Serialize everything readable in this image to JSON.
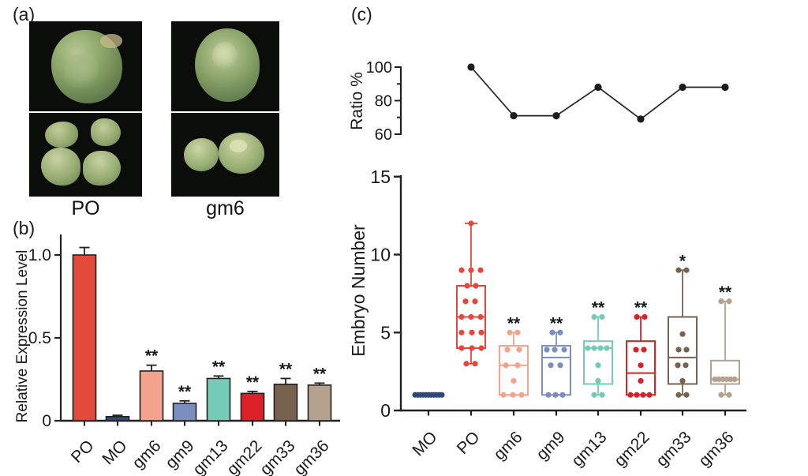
{
  "panel_a": {
    "label": "(a)",
    "description": "photographs of somatic embryos on black background",
    "columns": [
      {
        "label": "PO"
      },
      {
        "label": "gm6"
      }
    ]
  },
  "panel_b": {
    "label": "(b)"
  },
  "panel_c": {
    "label": "(c)"
  },
  "chart_data": [
    {
      "id": "expression_bar",
      "type": "bar",
      "title": "",
      "xlabel": "",
      "ylabel": "Relative Expression Level",
      "ylim": [
        0,
        1.1
      ],
      "yticks": [
        0,
        0.5,
        1.0
      ],
      "ytick_labels": [
        "0",
        "0.5",
        "1.0"
      ],
      "categories": [
        "PO",
        "MO",
        "gm6",
        "gm9",
        "gm13",
        "gm22",
        "gm33",
        "gm36"
      ],
      "values": [
        1.0,
        0.025,
        0.3,
        0.105,
        0.255,
        0.165,
        0.22,
        0.215
      ],
      "errors": [
        0.045,
        0.008,
        0.035,
        0.015,
        0.015,
        0.012,
        0.035,
        0.012
      ],
      "colors": [
        "#E24B3C",
        "#2E4879",
        "#F3A38E",
        "#7C8EC0",
        "#74CCB7",
        "#DB2027",
        "#77624F",
        "#B3A28D"
      ],
      "significance": [
        "",
        "",
        "**",
        "**",
        "**",
        "**",
        "**",
        "**"
      ],
      "grid": false
    },
    {
      "id": "ratio_line",
      "type": "line",
      "title": "",
      "ylabel": "Ratio %",
      "ylim": [
        60,
        100
      ],
      "yticks": [
        60,
        70,
        80,
        90,
        100
      ],
      "ytick_labels": [
        "60",
        "",
        "80",
        "",
        "100"
      ],
      "categories": [
        "PO",
        "gm6",
        "gm9",
        "gm13",
        "gm22",
        "gm33",
        "gm36"
      ],
      "values": [
        100,
        71,
        71,
        88,
        69,
        88,
        88
      ],
      "color": "#222222",
      "grid": false
    },
    {
      "id": "embryo_box",
      "type": "box",
      "title": "",
      "ylabel": "Embryo Number",
      "ylim": [
        0,
        15
      ],
      "yticks": [
        0,
        5,
        10,
        15
      ],
      "ytick_labels": [
        "0",
        "5",
        "10",
        "15"
      ],
      "categories": [
        "MO",
        "PO",
        "gm6",
        "gm9",
        "gm13",
        "gm22",
        "gm33",
        "gm36"
      ],
      "boxes": [
        {
          "name": "MO",
          "color": "#2E4879",
          "q1": null,
          "median": null,
          "q3": null,
          "whisker_low": null,
          "whisker_high": null,
          "sig": "",
          "sig_at": null,
          "points": [
            [
              1,
              -17
            ],
            [
              1,
              -13.6
            ],
            [
              1,
              -10.2
            ],
            [
              1,
              -6.8
            ],
            [
              1,
              -3.4
            ],
            [
              1,
              0
            ],
            [
              1,
              3.4
            ],
            [
              1,
              6.8
            ],
            [
              1,
              10.2
            ],
            [
              1,
              13.6
            ],
            [
              1,
              17
            ]
          ]
        },
        {
          "name": "PO",
          "color": "#E8463A",
          "q1": 4,
          "median": 6,
          "q3": 8,
          "whisker_low": 3,
          "whisker_high": 12,
          "sig": "",
          "sig_at": null,
          "points": [
            [
              12,
              0
            ],
            [
              9,
              -12
            ],
            [
              9,
              0
            ],
            [
              9,
              12
            ],
            [
              8,
              -5
            ],
            [
              8,
              6
            ],
            [
              7,
              -7
            ],
            [
              7,
              5
            ],
            [
              6,
              -12
            ],
            [
              6,
              0
            ],
            [
              6,
              12
            ],
            [
              5,
              -12
            ],
            [
              5,
              1
            ],
            [
              5,
              13
            ],
            [
              4,
              -12
            ],
            [
              4,
              1
            ],
            [
              4,
              13
            ],
            [
              3,
              -6
            ],
            [
              3,
              5
            ]
          ]
        },
        {
          "name": "gm6",
          "color": "#F3A38E",
          "q1": 1,
          "median": 2.9,
          "q3": 4.15,
          "whisker_low": 1,
          "whisker_high": 5,
          "sig": "**",
          "sig_at": 5,
          "points": [
            [
              5,
              -5
            ],
            [
              5,
              5
            ],
            [
              3.9,
              -8
            ],
            [
              3.9,
              7
            ],
            [
              2.9,
              -10
            ],
            [
              2.9,
              5
            ],
            [
              1.9,
              0
            ],
            [
              1,
              -13
            ],
            [
              1,
              -1
            ],
            [
              1,
              10
            ]
          ]
        },
        {
          "name": "gm9",
          "color": "#7C8EC0",
          "q1": 1,
          "median": 3.4,
          "q3": 4.15,
          "whisker_low": 1,
          "whisker_high": 5,
          "sig": "**",
          "sig_at": 5,
          "points": [
            [
              5,
              -5
            ],
            [
              5,
              5
            ],
            [
              3.9,
              -12
            ],
            [
              3.9,
              -2
            ],
            [
              3.9,
              10
            ],
            [
              2.9,
              -7
            ],
            [
              2.9,
              5
            ],
            [
              1,
              -10
            ],
            [
              1,
              -1
            ],
            [
              1,
              8
            ]
          ]
        },
        {
          "name": "gm13",
          "color": "#74CCB7",
          "q1": 1.7,
          "median": 4,
          "q3": 4.45,
          "whisker_low": 1,
          "whisker_high": 6,
          "sig": "**",
          "sig_at": 6,
          "points": [
            [
              6,
              -5
            ],
            [
              6,
              5
            ],
            [
              4,
              -13
            ],
            [
              4,
              -5
            ],
            [
              4,
              3
            ],
            [
              4,
              11
            ],
            [
              2.9,
              0
            ],
            [
              1.9,
              0
            ],
            [
              1,
              -5
            ],
            [
              1,
              5
            ]
          ]
        },
        {
          "name": "gm22",
          "color": "#DB2027",
          "q1": 1,
          "median": 2.4,
          "q3": 4.45,
          "whisker_low": 1,
          "whisker_high": 6,
          "sig": "**",
          "sig_at": 6,
          "points": [
            [
              6,
              -5
            ],
            [
              6,
              5
            ],
            [
              3.9,
              -6
            ],
            [
              3.9,
              4
            ],
            [
              2.9,
              0
            ],
            [
              1.9,
              0
            ],
            [
              1,
              -13
            ],
            [
              1,
              -5
            ],
            [
              1,
              3
            ],
            [
              1,
              11
            ]
          ]
        },
        {
          "name": "gm33",
          "color": "#77624F",
          "q1": 1.7,
          "median": 3.4,
          "q3": 6,
          "whisker_low": 1,
          "whisker_high": 9,
          "sig": "*",
          "sig_at": 9,
          "points": [
            [
              9,
              -5
            ],
            [
              9,
              5
            ],
            [
              4.9,
              0
            ],
            [
              3.9,
              -5
            ],
            [
              3.9,
              5
            ],
            [
              2.9,
              -6
            ],
            [
              2.9,
              4
            ],
            [
              1.9,
              0
            ],
            [
              1,
              -5
            ],
            [
              1,
              5
            ]
          ]
        },
        {
          "name": "gm36",
          "color": "#B3A28D",
          "q1": 1.7,
          "median": 2,
          "q3": 3.2,
          "whisker_low": 1,
          "whisker_high": 7,
          "sig": "**",
          "sig_at": 7,
          "points": [
            [
              7,
              -5
            ],
            [
              7,
              5
            ],
            [
              2,
              -13
            ],
            [
              2,
              -8
            ],
            [
              2,
              -3
            ],
            [
              2,
              2
            ],
            [
              2,
              7
            ],
            [
              2,
              12
            ],
            [
              1,
              -5
            ],
            [
              1,
              5
            ]
          ]
        }
      ],
      "grid": false
    }
  ]
}
